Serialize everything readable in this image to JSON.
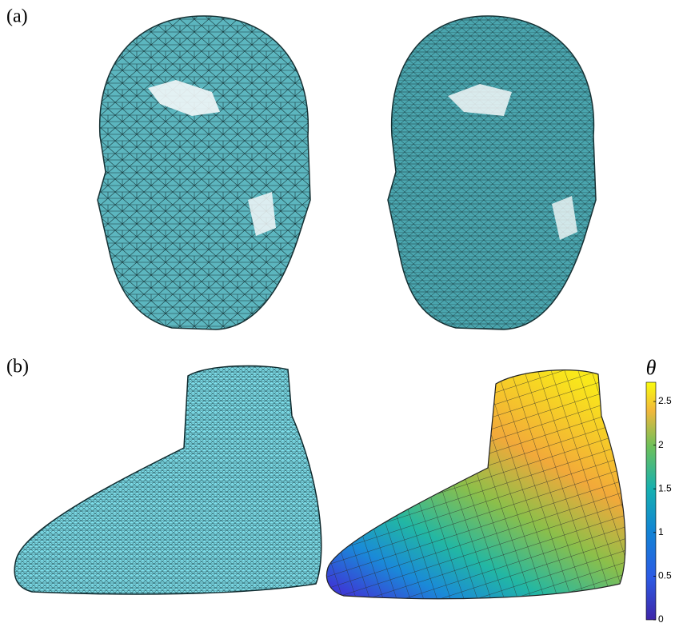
{
  "panels": [
    {
      "label": "(a)"
    },
    {
      "label": "(b)"
    }
  ],
  "colorbar": {
    "label": "θ",
    "lim": [
      0,
      2.72
    ],
    "ticks": [
      0,
      0.5,
      1,
      1.5,
      2,
      2.5
    ]
  }
}
